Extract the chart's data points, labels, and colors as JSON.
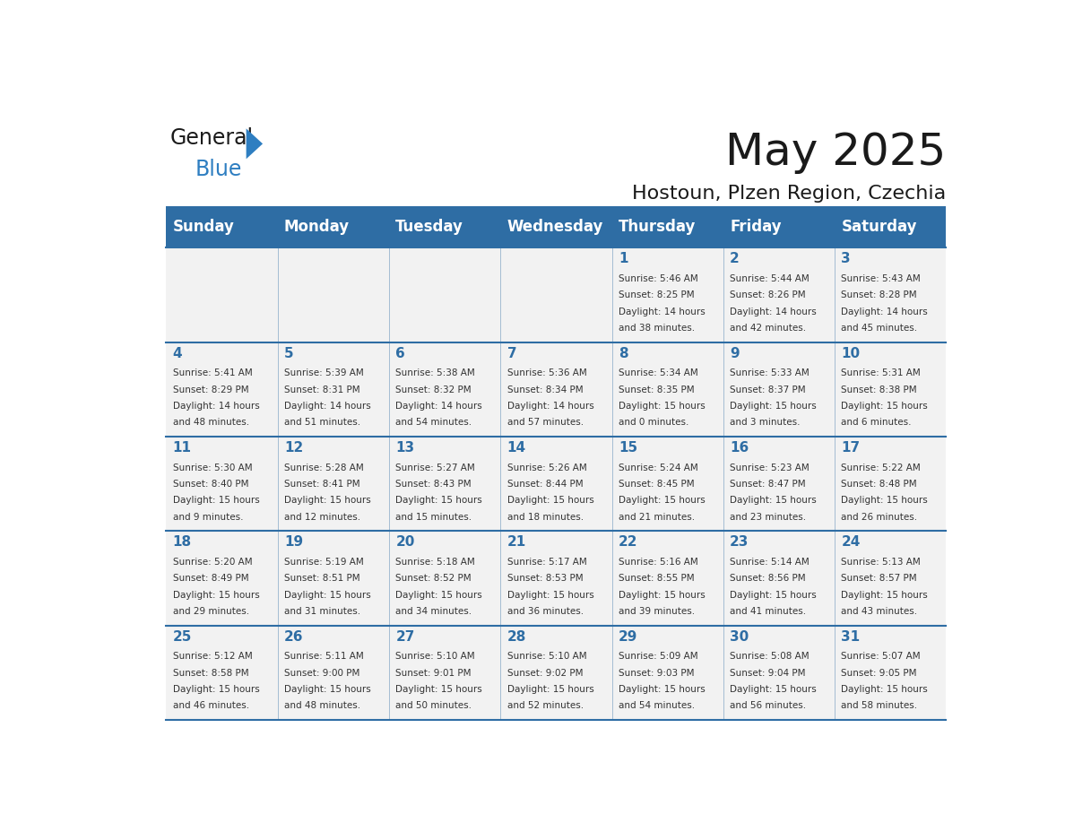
{
  "title": "May 2025",
  "subtitle": "Hostoun, Plzen Region, Czechia",
  "days_of_week": [
    "Sunday",
    "Monday",
    "Tuesday",
    "Wednesday",
    "Thursday",
    "Friday",
    "Saturday"
  ],
  "header_bg": "#2E6DA4",
  "header_text": "#FFFFFF",
  "cell_bg_light": "#F2F2F2",
  "day_number_color": "#2E6DA4",
  "text_color": "#333333",
  "line_color": "#2E6DA4",
  "weeks": [
    [
      {
        "day": null,
        "info": ""
      },
      {
        "day": null,
        "info": ""
      },
      {
        "day": null,
        "info": ""
      },
      {
        "day": null,
        "info": ""
      },
      {
        "day": 1,
        "info": "Sunrise: 5:46 AM\nSunset: 8:25 PM\nDaylight: 14 hours\nand 38 minutes."
      },
      {
        "day": 2,
        "info": "Sunrise: 5:44 AM\nSunset: 8:26 PM\nDaylight: 14 hours\nand 42 minutes."
      },
      {
        "day": 3,
        "info": "Sunrise: 5:43 AM\nSunset: 8:28 PM\nDaylight: 14 hours\nand 45 minutes."
      }
    ],
    [
      {
        "day": 4,
        "info": "Sunrise: 5:41 AM\nSunset: 8:29 PM\nDaylight: 14 hours\nand 48 minutes."
      },
      {
        "day": 5,
        "info": "Sunrise: 5:39 AM\nSunset: 8:31 PM\nDaylight: 14 hours\nand 51 minutes."
      },
      {
        "day": 6,
        "info": "Sunrise: 5:38 AM\nSunset: 8:32 PM\nDaylight: 14 hours\nand 54 minutes."
      },
      {
        "day": 7,
        "info": "Sunrise: 5:36 AM\nSunset: 8:34 PM\nDaylight: 14 hours\nand 57 minutes."
      },
      {
        "day": 8,
        "info": "Sunrise: 5:34 AM\nSunset: 8:35 PM\nDaylight: 15 hours\nand 0 minutes."
      },
      {
        "day": 9,
        "info": "Sunrise: 5:33 AM\nSunset: 8:37 PM\nDaylight: 15 hours\nand 3 minutes."
      },
      {
        "day": 10,
        "info": "Sunrise: 5:31 AM\nSunset: 8:38 PM\nDaylight: 15 hours\nand 6 minutes."
      }
    ],
    [
      {
        "day": 11,
        "info": "Sunrise: 5:30 AM\nSunset: 8:40 PM\nDaylight: 15 hours\nand 9 minutes."
      },
      {
        "day": 12,
        "info": "Sunrise: 5:28 AM\nSunset: 8:41 PM\nDaylight: 15 hours\nand 12 minutes."
      },
      {
        "day": 13,
        "info": "Sunrise: 5:27 AM\nSunset: 8:43 PM\nDaylight: 15 hours\nand 15 minutes."
      },
      {
        "day": 14,
        "info": "Sunrise: 5:26 AM\nSunset: 8:44 PM\nDaylight: 15 hours\nand 18 minutes."
      },
      {
        "day": 15,
        "info": "Sunrise: 5:24 AM\nSunset: 8:45 PM\nDaylight: 15 hours\nand 21 minutes."
      },
      {
        "day": 16,
        "info": "Sunrise: 5:23 AM\nSunset: 8:47 PM\nDaylight: 15 hours\nand 23 minutes."
      },
      {
        "day": 17,
        "info": "Sunrise: 5:22 AM\nSunset: 8:48 PM\nDaylight: 15 hours\nand 26 minutes."
      }
    ],
    [
      {
        "day": 18,
        "info": "Sunrise: 5:20 AM\nSunset: 8:49 PM\nDaylight: 15 hours\nand 29 minutes."
      },
      {
        "day": 19,
        "info": "Sunrise: 5:19 AM\nSunset: 8:51 PM\nDaylight: 15 hours\nand 31 minutes."
      },
      {
        "day": 20,
        "info": "Sunrise: 5:18 AM\nSunset: 8:52 PM\nDaylight: 15 hours\nand 34 minutes."
      },
      {
        "day": 21,
        "info": "Sunrise: 5:17 AM\nSunset: 8:53 PM\nDaylight: 15 hours\nand 36 minutes."
      },
      {
        "day": 22,
        "info": "Sunrise: 5:16 AM\nSunset: 8:55 PM\nDaylight: 15 hours\nand 39 minutes."
      },
      {
        "day": 23,
        "info": "Sunrise: 5:14 AM\nSunset: 8:56 PM\nDaylight: 15 hours\nand 41 minutes."
      },
      {
        "day": 24,
        "info": "Sunrise: 5:13 AM\nSunset: 8:57 PM\nDaylight: 15 hours\nand 43 minutes."
      }
    ],
    [
      {
        "day": 25,
        "info": "Sunrise: 5:12 AM\nSunset: 8:58 PM\nDaylight: 15 hours\nand 46 minutes."
      },
      {
        "day": 26,
        "info": "Sunrise: 5:11 AM\nSunset: 9:00 PM\nDaylight: 15 hours\nand 48 minutes."
      },
      {
        "day": 27,
        "info": "Sunrise: 5:10 AM\nSunset: 9:01 PM\nDaylight: 15 hours\nand 50 minutes."
      },
      {
        "day": 28,
        "info": "Sunrise: 5:10 AM\nSunset: 9:02 PM\nDaylight: 15 hours\nand 52 minutes."
      },
      {
        "day": 29,
        "info": "Sunrise: 5:09 AM\nSunset: 9:03 PM\nDaylight: 15 hours\nand 54 minutes."
      },
      {
        "day": 30,
        "info": "Sunrise: 5:08 AM\nSunset: 9:04 PM\nDaylight: 15 hours\nand 56 minutes."
      },
      {
        "day": 31,
        "info": "Sunrise: 5:07 AM\nSunset: 9:05 PM\nDaylight: 15 hours\nand 58 minutes."
      }
    ]
  ]
}
